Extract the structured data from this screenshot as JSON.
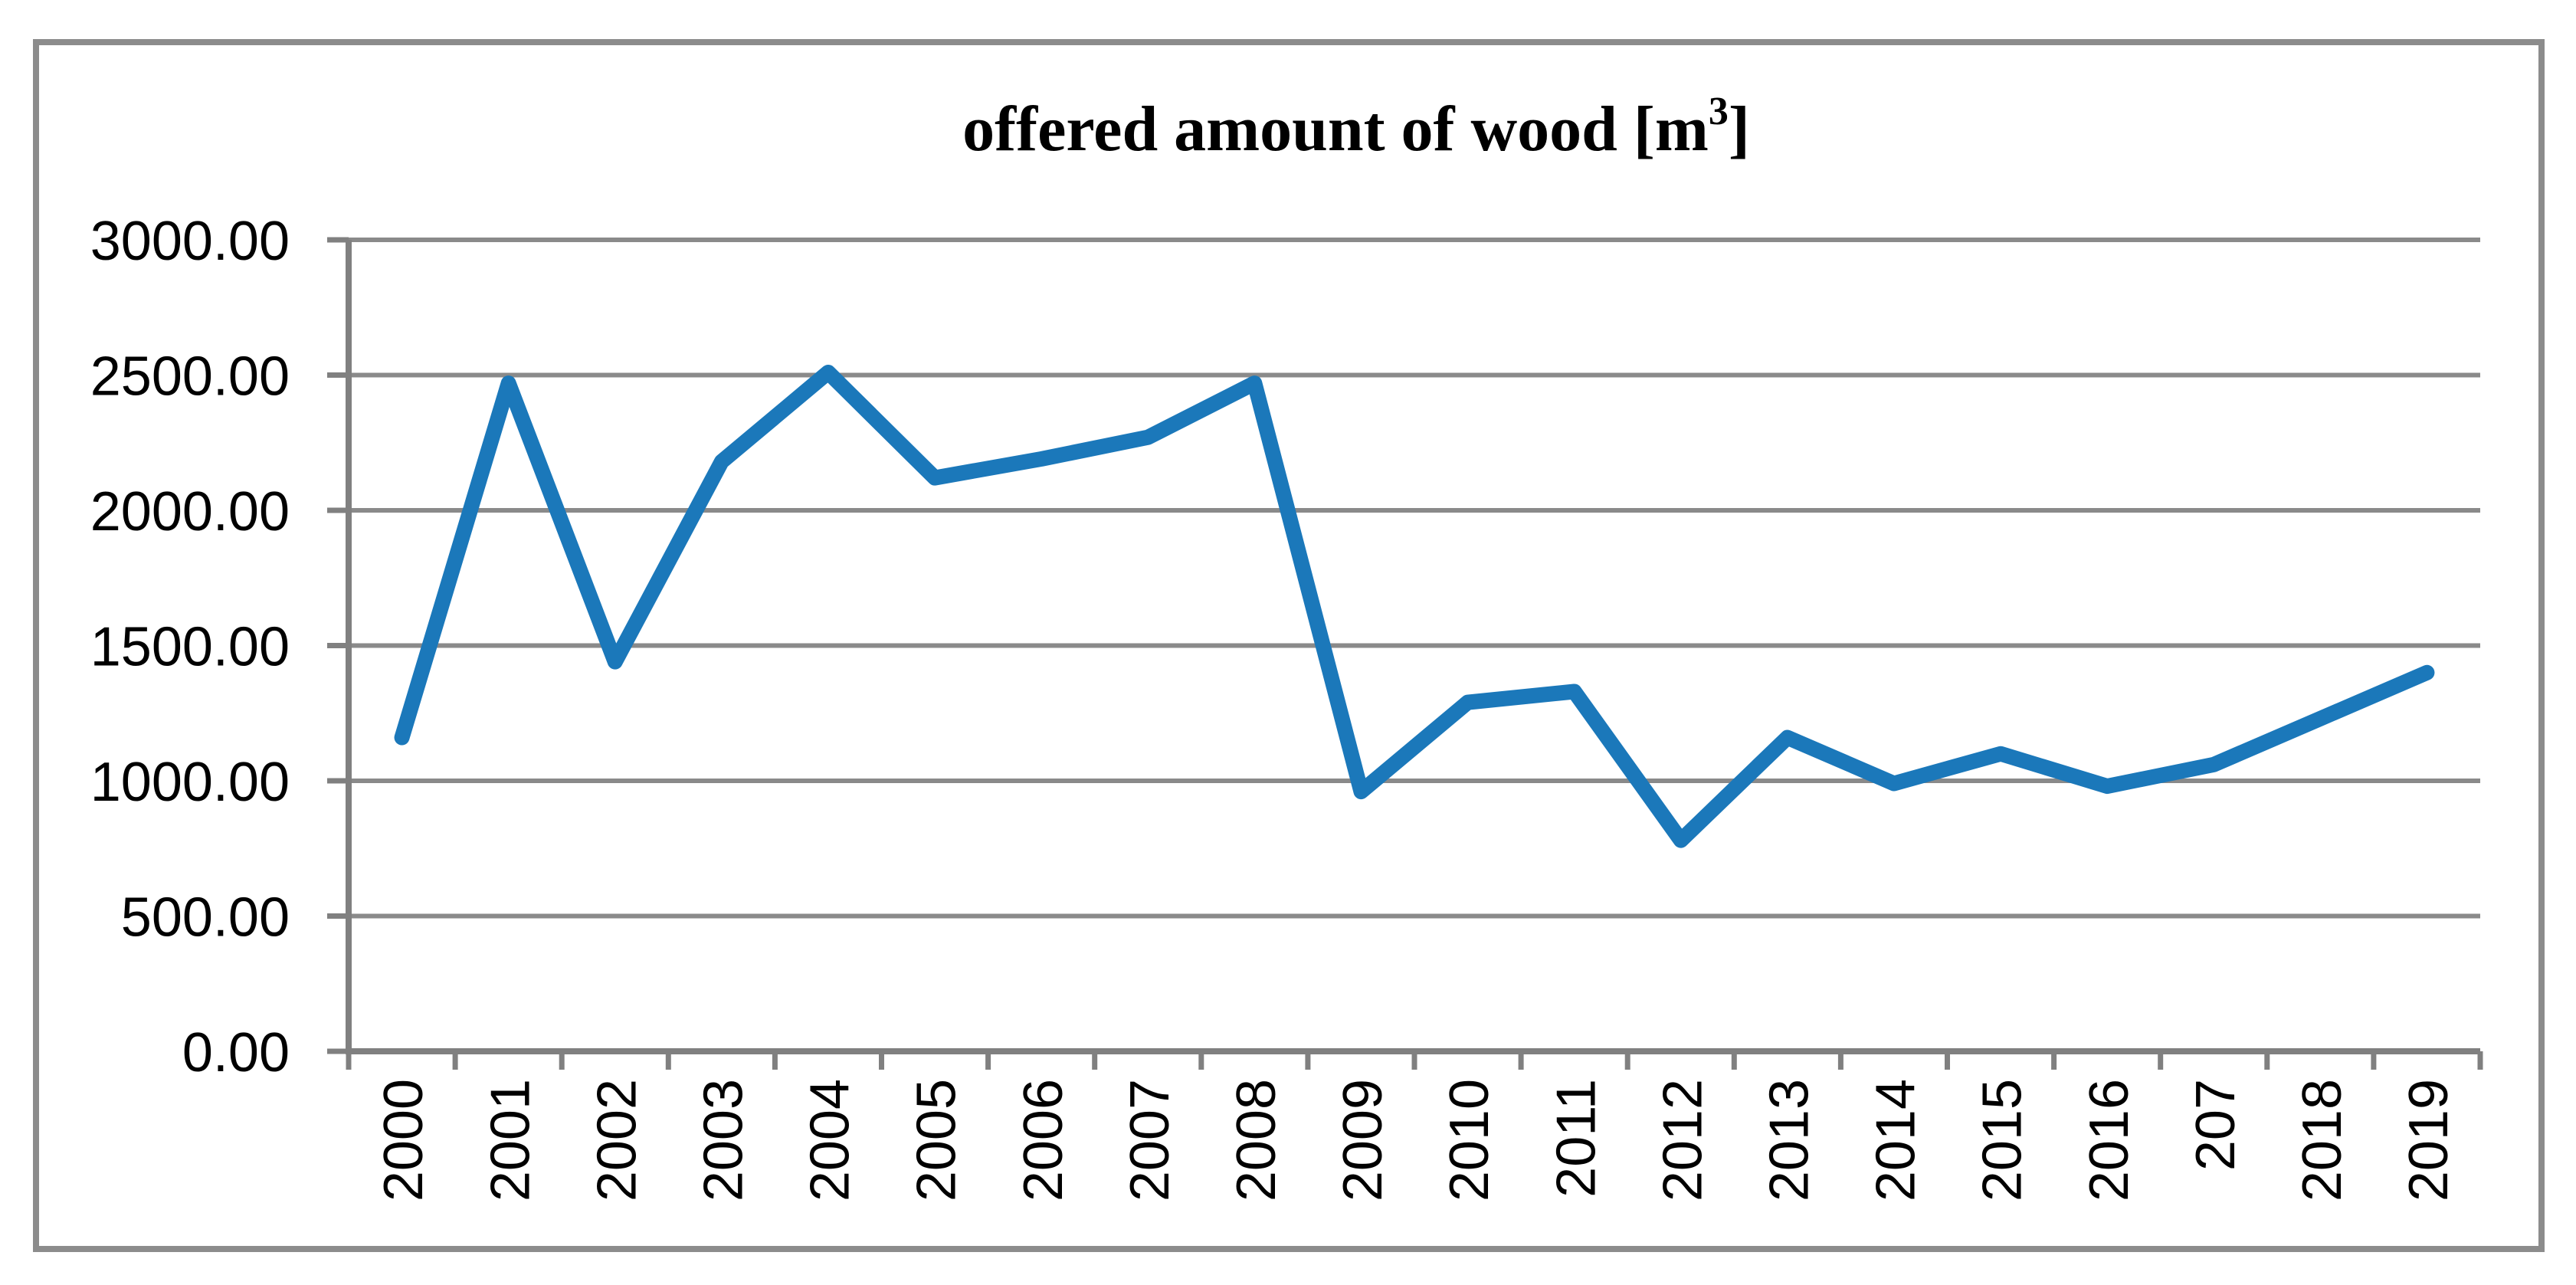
{
  "chart_data": {
    "type": "line",
    "title": {
      "text": "offered amount of wood [m³]",
      "prefix": "offered amount of wood [m",
      "superscript": "3",
      "suffix": "]"
    },
    "categories": [
      "2000",
      "2001",
      "2002",
      "2003",
      "2004",
      "2005",
      "2006",
      "2007",
      "2008",
      "2009",
      "2010",
      "2011",
      "2012",
      "2013",
      "2014",
      "2015",
      "2016",
      "207",
      "2018",
      "2019"
    ],
    "series": [
      {
        "name": "offered amount of wood",
        "values": [
          1160,
          2470,
          1440,
          2180,
          2510,
          2120,
          2190,
          2270,
          2470,
          960,
          1290,
          1330,
          780,
          1160,
          990,
          1100,
          980,
          1060,
          1230,
          1400
        ]
      }
    ],
    "xlabel": "",
    "ylabel": "",
    "ylim": [
      0,
      3000
    ],
    "ytick_step": 500,
    "ytick_labels": [
      "0.00",
      "500.00",
      "1000.00",
      "1500.00",
      "2000.00",
      "2500.00",
      "3000.00"
    ],
    "grid": "horizontal",
    "legend": "none",
    "colors": {
      "series_line": "#1b78ba",
      "gridline": "#8a8a8a",
      "axis": "#808080",
      "frame_border": "#8c8c8c",
      "text": "#000000"
    }
  }
}
